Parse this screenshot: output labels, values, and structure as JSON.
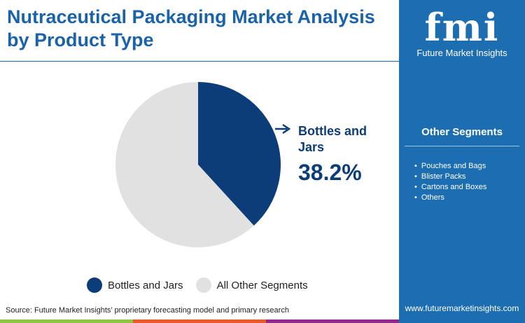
{
  "title": "Nutraceutical Packaging Market Analysis by Product Type",
  "brand": {
    "logo_text": "fmi",
    "name": "Future Market Insights",
    "url": "www.futuremarketinsights.com"
  },
  "other_segments": {
    "heading": "Other Segments",
    "items": [
      "Pouches and Bags",
      "Blister Packs",
      "Cartons and Boxes",
      "Others"
    ]
  },
  "source": "Source: Future Market Insights’ proprietary forecasting model and primary research",
  "colors": {
    "primary": "#0d3d78",
    "other": "#e1e1e1",
    "side": "#1d6db1",
    "bar": [
      "#8dc63f",
      "#e85a2a",
      "#8e2b8a"
    ]
  },
  "chart_data": {
    "type": "pie",
    "slices": [
      {
        "label": "Bottles and Jars",
        "value": 38.2,
        "color": "#0d3d78"
      },
      {
        "label": "All Other Segments",
        "value": 61.8,
        "color": "#e1e1e1"
      }
    ],
    "callout": {
      "label": "Bottles and Jars",
      "value": "38.2%"
    },
    "legend": [
      "Bottles and Jars",
      "All Other Segments"
    ],
    "legend_position": "bottom"
  }
}
